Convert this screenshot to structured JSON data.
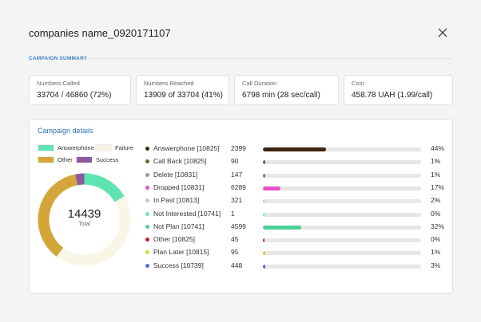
{
  "modal": {
    "title": "companies name_0920171107"
  },
  "summary": {
    "section_label": "CAMPAIGN SUMMARY",
    "cards": [
      {
        "label": "Numbers Called",
        "value": "33704 / 46860 (72%)"
      },
      {
        "label": "Numbers Reached",
        "value": "13909 of 33704 (41%)"
      },
      {
        "label": "Call Duration",
        "value": "6798 min (28 sec/call)"
      },
      {
        "label": "Cost",
        "value": "458.78 UAH (1.99/call)"
      }
    ]
  },
  "details": {
    "title": "Campaign details",
    "legend": [
      {
        "label": "Answerphone",
        "color": "#5fe3b0"
      },
      {
        "label": "Failure",
        "color": "#f6f4e4"
      },
      {
        "label": "Other",
        "color": "#d4a63a"
      },
      {
        "label": "Success",
        "color": "#8a5a9e"
      }
    ],
    "donut": {
      "total": "14439",
      "total_label": "Total",
      "segments": [
        {
          "name": "Answerphone",
          "value": 2399,
          "color": "#5fe3b0"
        },
        {
          "name": "Failure",
          "value": 6300,
          "color": "#f8f6e7"
        },
        {
          "name": "Other",
          "value": 5292,
          "color": "#d4a63a"
        },
        {
          "name": "Success",
          "value": 448,
          "color": "#8a5a9e"
        }
      ]
    },
    "rows": [
      {
        "name": "Answerphone [10825]",
        "count": "2399",
        "percent": "44%",
        "fraction": 0.4,
        "dot": "#3b2412",
        "bar": "#3b2412"
      },
      {
        "name": "Call Back [10825]",
        "count": "90",
        "percent": "1%",
        "fraction": 0.01,
        "dot": "#556b3a",
        "bar": "#556b3a"
      },
      {
        "name": "Delete [10831]",
        "count": "147",
        "percent": "1%",
        "fraction": 0.01,
        "dot": "#999999",
        "bar": "#777777"
      },
      {
        "name": "Dropped [10831]",
        "count": "6289",
        "percent": "17%",
        "fraction": 0.11,
        "dot": "#e84fc7",
        "bar": "#e84fc7"
      },
      {
        "name": "In Past [10813]",
        "count": "321",
        "percent": "2%",
        "fraction": 0.0,
        "dot": "#c8c8c8",
        "bar": "#c8c8c8"
      },
      {
        "name": "Not Interested [10741]",
        "count": "1",
        "percent": "0%",
        "fraction": 0.0,
        "dot": "#7fd6dc",
        "bar": "#7fd6dc"
      },
      {
        "name": "Not Plan [10741]",
        "count": "4599",
        "percent": "32%",
        "fraction": 0.24,
        "dot": "#4ecf97",
        "bar": "#4ecf97"
      },
      {
        "name": "Other [10825]",
        "count": "45",
        "percent": "0%",
        "fraction": 0.0,
        "dot": "#d0152b",
        "bar": "#d0152b"
      },
      {
        "name": "Plan Later [10815]",
        "count": "95",
        "percent": "1%",
        "fraction": 0.01,
        "dot": "#c7e23a",
        "bar": "#e3c33a"
      },
      {
        "name": "Success [10739]",
        "count": "448",
        "percent": "3%",
        "fraction": 0.01,
        "dot": "#5f6bd6",
        "bar": "#6a5ad6"
      }
    ]
  }
}
